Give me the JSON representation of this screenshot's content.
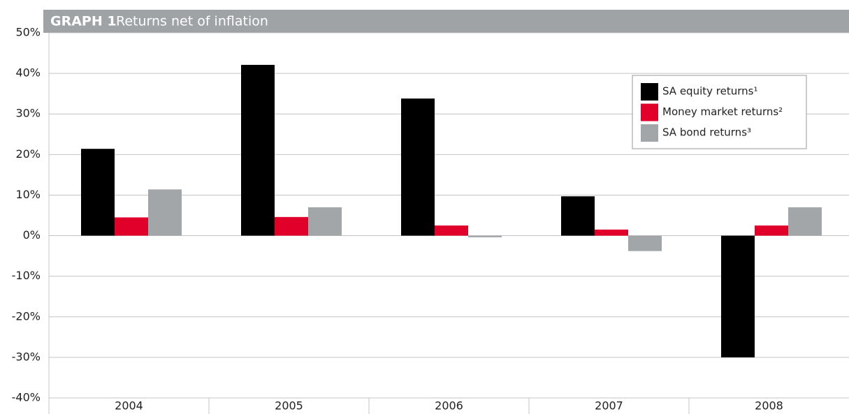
{
  "chart_data": {
    "type": "bar",
    "title_label": "GRAPH 1",
    "title": "Returns net of inflation",
    "categories": [
      "2004",
      "2005",
      "2006",
      "2007",
      "2008"
    ],
    "series": [
      {
        "name": "SA equity returns¹",
        "color": "#000000",
        "values": [
          21.4,
          42.1,
          33.8,
          9.7,
          -30.0
        ]
      },
      {
        "name": "Money market returns²",
        "color": "#e0002a",
        "values": [
          4.5,
          4.6,
          2.5,
          1.5,
          2.5
        ]
      },
      {
        "name": "SA bond returns³",
        "color": "#a3a6a9",
        "values": [
          11.4,
          7.0,
          -0.4,
          -3.8,
          7.0
        ]
      }
    ],
    "ylim": [
      -40,
      50
    ],
    "yticks": [
      {
        "value": -40,
        "label": "-40%"
      },
      {
        "value": -30,
        "label": "-30%"
      },
      {
        "value": -20,
        "label": "-20%"
      },
      {
        "value": -10,
        "label": "-10%"
      },
      {
        "value": 0,
        "label": "0%"
      },
      {
        "value": 10,
        "label": "10%"
      },
      {
        "value": 20,
        "label": "20%"
      },
      {
        "value": 30,
        "label": "30%"
      },
      {
        "value": 40,
        "label": "40%"
      },
      {
        "value": 50,
        "label": "50%"
      }
    ],
    "grid": true,
    "legend": "upper right"
  }
}
